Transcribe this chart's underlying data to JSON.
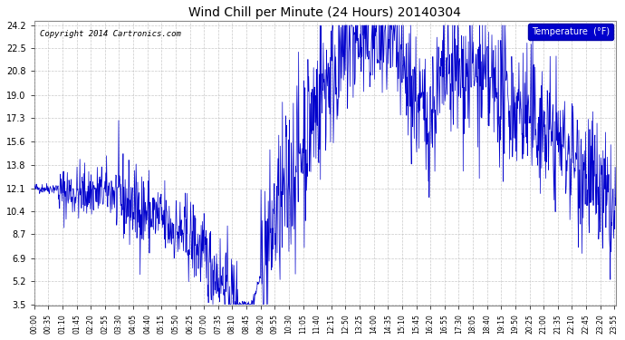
{
  "title": "Wind Chill per Minute (24 Hours) 20140304",
  "copyright_text": "Copyright 2014 Cartronics.com",
  "legend_label": "Temperature  (°F)",
  "legend_bg": "#0000cc",
  "legend_text_color": "#ffffff",
  "line_color": "#0000cc",
  "bg_color": "#ffffff",
  "plot_bg_color": "#ffffff",
  "grid_color": "#bbbbbb",
  "yticks": [
    3.5,
    5.2,
    6.9,
    8.7,
    10.4,
    12.1,
    13.8,
    15.6,
    17.3,
    19.0,
    20.8,
    22.5,
    24.2
  ],
  "ymin": 3.5,
  "ymax": 24.2,
  "total_minutes": 1440,
  "figsize": [
    6.9,
    3.75
  ],
  "dpi": 100,
  "tick_interval": 35,
  "title_fontsize": 10,
  "ytick_fontsize": 7,
  "xtick_fontsize": 5.5,
  "copyright_fontsize": 6.5,
  "legend_fontsize": 7
}
